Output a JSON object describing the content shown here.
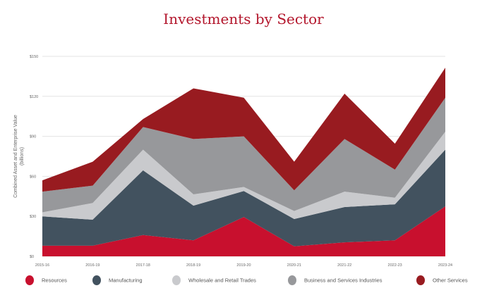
{
  "chart_data": {
    "type": "area",
    "stacked": true,
    "title": "Investments by Sector",
    "xlabel": "",
    "ylabel": "Combined Asset and Enterprise Value",
    "ylabel_sub": "(billions)",
    "ylim": [
      0,
      150
    ],
    "yticks": [
      0,
      30,
      60,
      90,
      120,
      150
    ],
    "ytick_labels": [
      "$0",
      "$30",
      "$60",
      "$90",
      "$120",
      "$150"
    ],
    "grid": true,
    "legend_position": "bottom",
    "categories": [
      "2015-16",
      "2016-19",
      "2017-18",
      "2018-19",
      "2019-20",
      "2020-21",
      "2021-22",
      "2022-23",
      "2023-24"
    ],
    "series": [
      {
        "name": "Resources",
        "color": "#c8102e",
        "values": [
          8,
          8,
          16,
          12,
          29.5,
          7.5,
          10.5,
          12,
          37.5
        ]
      },
      {
        "name": "Manufacturing",
        "color": "#42525f",
        "values": [
          22,
          19.5,
          48.5,
          26,
          19.5,
          20.5,
          26.5,
          27,
          42.5
        ]
      },
      {
        "name": "Wholesale and Retail Trades",
        "color": "#c9cacd",
        "values": [
          3,
          12.5,
          15.5,
          8.5,
          3,
          6,
          11.5,
          5,
          13.5
        ]
      },
      {
        "name": "Business and Services Industries",
        "color": "#97989b",
        "values": [
          15.5,
          13,
          17,
          41.5,
          38,
          15.5,
          39.5,
          21,
          25.5
        ]
      },
      {
        "name": "Other Services",
        "color": "#981b20",
        "values": [
          8.5,
          18,
          6,
          38,
          29,
          21.5,
          34,
          19.5,
          22.5
        ]
      }
    ]
  }
}
